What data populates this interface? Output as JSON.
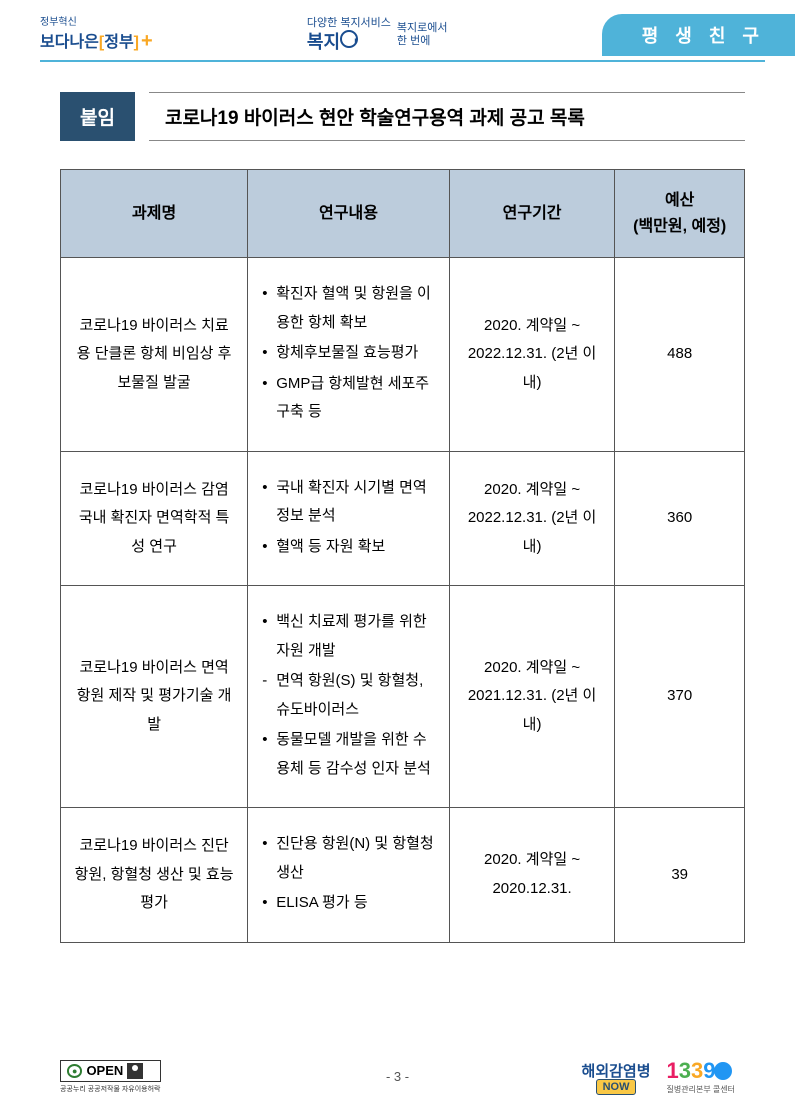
{
  "header": {
    "gov_tag": "정부혁신",
    "gov_main_prefix": "보다나은",
    "gov_main_suffix": "정부",
    "center_top": "다양한 복지서비스",
    "center_logo": "복지",
    "center_right1": "복지로에서",
    "center_right2": "한 번에",
    "right_tab": "평 생 친 구"
  },
  "attach": {
    "label": "붙임",
    "title": "코로나19 바이러스 현안 학술연구용역 과제 공고 목록"
  },
  "table": {
    "headers": {
      "name": "과제명",
      "content": "연구내용",
      "period": "연구기간",
      "budget_line1": "예산",
      "budget_line2": "(백만원, 예정)"
    },
    "rows": [
      {
        "name": "코로나19 바이러스 치료용 단클론 항체 비임상 후보물질 발굴",
        "items": [
          "확진자 혈액 및 항원을 이용한 항체 확보",
          "항체후보물질 효능평가",
          "GMP급 항체발현 세포주 구축 등"
        ],
        "period": "2020. 계약일 ~ 2022.12.31. (2년 이내)",
        "budget": "488"
      },
      {
        "name": "코로나19 바이러스 감염 국내 확진자 면역학적 특성 연구",
        "items": [
          "국내 확진자 시기별 면역정보 분석",
          "혈액 등 자원 확보"
        ],
        "period": "2020. 계약일 ~ 2022.12.31. (2년 이내)",
        "budget": "360"
      },
      {
        "name": "코로나19 바이러스 면역항원 제작 및 평가기술 개발",
        "items": [
          "백신 치료제 평가를 위한 자원 개발",
          "면역 항원(S) 및 항혈청, 슈도바이러스",
          "동물모델 개발을 위한 수용체 등 감수성 인자 분석"
        ],
        "item_styles": [
          "bullet",
          "dash",
          "bullet"
        ],
        "period": "2020. 계약일 ~ 2021.12.31. (2년 이내)",
        "budget": "370"
      },
      {
        "name": "코로나19 바이러스 진단 항원, 항혈청 생산 및 효능평가",
        "items": [
          "진단용 항원(N) 및 항혈청 생산",
          "ELISA 평가 등"
        ],
        "period": "2020. 계약일 ~ 2020.12.31.",
        "budget": "39"
      }
    ]
  },
  "footer": {
    "open_label": "OPEN",
    "open_sub": "공공누리 공공저작물 자유이용허락",
    "page": "- 3 -",
    "now_top": "해외감염병",
    "now_box": "NOW",
    "call_num": "1339",
    "call_sub": "질병관리본부 콜센터"
  }
}
